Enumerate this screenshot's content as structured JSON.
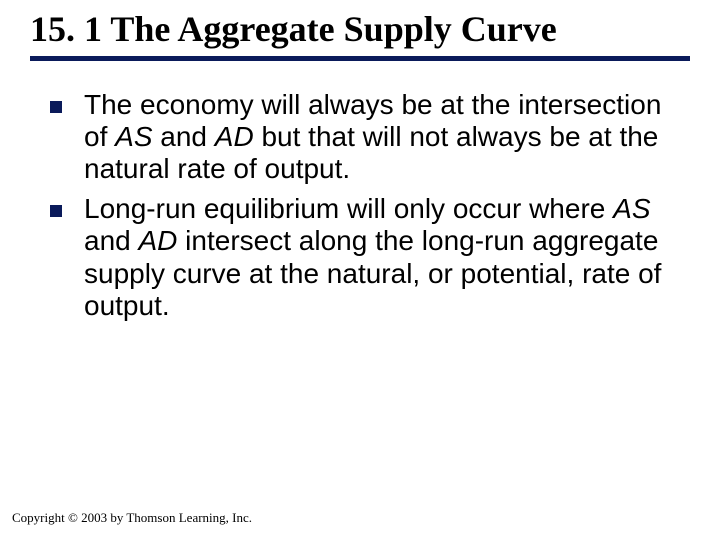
{
  "title": "15. 1 The Aggregate Supply Curve",
  "title_color": "#000000",
  "title_fontsize": 36,
  "underline_color": "#0a1a5a",
  "underline_height": 5,
  "bullet_color": "#0a1a5a",
  "bullet_size": 12,
  "body_fontsize": 28,
  "body_color": "#000000",
  "bullets": [
    {
      "pre1": "The economy will always be at the intersection of ",
      "it1": "AS",
      "mid1": " and ",
      "it2": "AD",
      "post1": " but that will not always be at the natural rate of output."
    },
    {
      "pre1": "Long-run equilibrium will only occur where ",
      "it1": "AS",
      "mid1": " and ",
      "it2": "AD",
      "post1": " intersect along the long-run aggregate supply curve at the natural, or potential, rate of output."
    }
  ],
  "footer": "Copyright © 2003 by Thomson Learning, Inc.",
  "footer_fontsize": 13
}
